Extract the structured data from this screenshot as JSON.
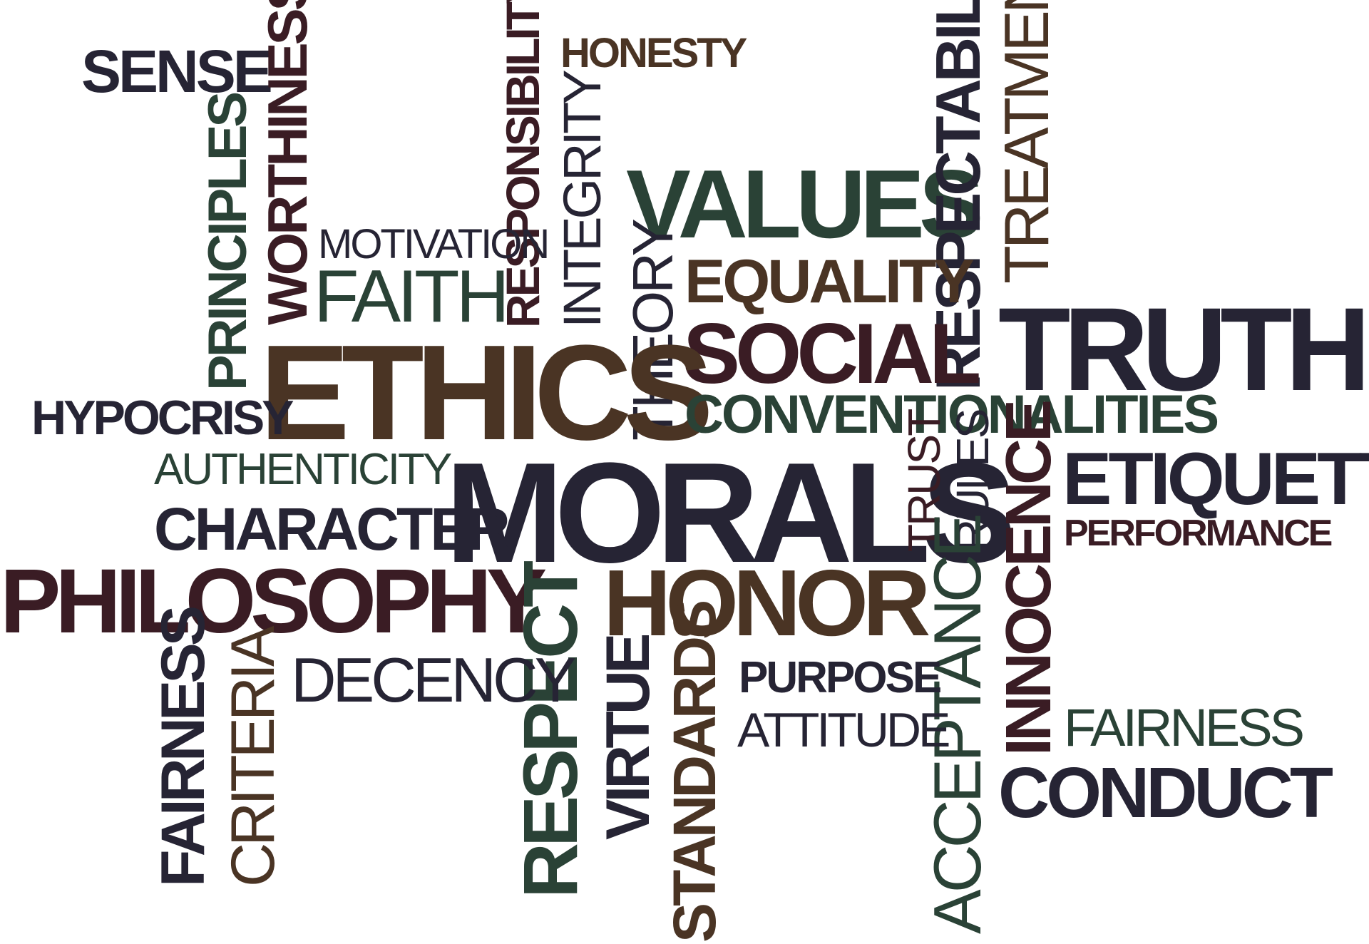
{
  "colors": {
    "navy": "#262434",
    "brown": "#4a3424",
    "green": "#2a4236",
    "maroon": "#3a1c24",
    "background": "#ffffff"
  },
  "words": [
    {
      "text": "SENSE",
      "color": "navy",
      "weight": "bold",
      "orientation": "horizontal"
    },
    {
      "text": "HONESTY",
      "color": "brown",
      "weight": "bold",
      "orientation": "horizontal"
    },
    {
      "text": "WORTHINESS",
      "color": "maroon",
      "weight": "bold",
      "orientation": "vertical"
    },
    {
      "text": "PRINCIPLES",
      "color": "green",
      "weight": "bold",
      "orientation": "vertical"
    },
    {
      "text": "RESPONSIBILITY",
      "color": "maroon",
      "weight": "bold",
      "orientation": "vertical"
    },
    {
      "text": "INTEGRITY",
      "color": "navy",
      "weight": "regular",
      "orientation": "vertical"
    },
    {
      "text": "VALUES",
      "color": "green",
      "weight": "bold",
      "orientation": "horizontal"
    },
    {
      "text": "RESPECTABILITY",
      "color": "navy",
      "weight": "bold",
      "orientation": "vertical"
    },
    {
      "text": "TREATMENT",
      "color": "brown",
      "weight": "regular",
      "orientation": "vertical"
    },
    {
      "text": "MOTIVATION",
      "color": "navy",
      "weight": "regular",
      "orientation": "horizontal"
    },
    {
      "text": "FAITH",
      "color": "green",
      "weight": "regular",
      "orientation": "horizontal"
    },
    {
      "text": "EQUALITY",
      "color": "brown",
      "weight": "bold",
      "orientation": "horizontal"
    },
    {
      "text": "THEORY",
      "color": "navy",
      "weight": "regular",
      "orientation": "vertical"
    },
    {
      "text": "SOCIAL",
      "color": "maroon",
      "weight": "bold",
      "orientation": "horizontal"
    },
    {
      "text": "TRUTH",
      "color": "navy",
      "weight": "bold",
      "orientation": "horizontal"
    },
    {
      "text": "ETHICS",
      "color": "brown",
      "weight": "bold",
      "orientation": "horizontal"
    },
    {
      "text": "HYPOCRISY",
      "color": "navy",
      "weight": "bold",
      "orientation": "horizontal"
    },
    {
      "text": "CONVENTIONALITIES",
      "color": "green",
      "weight": "bold",
      "orientation": "horizontal"
    },
    {
      "text": "AUTHENTICITY",
      "color": "green",
      "weight": "regular",
      "orientation": "horizontal"
    },
    {
      "text": "MORALS",
      "color": "navy",
      "weight": "bold",
      "orientation": "horizontal"
    },
    {
      "text": "TRUST",
      "color": "maroon",
      "weight": "regular",
      "orientation": "vertical"
    },
    {
      "text": "RULES",
      "color": "navy",
      "weight": "regular",
      "orientation": "vertical"
    },
    {
      "text": "INNOCENCE",
      "color": "maroon",
      "weight": "bold",
      "orientation": "vertical"
    },
    {
      "text": "ETIQUETTE",
      "color": "navy",
      "weight": "bold",
      "orientation": "horizontal"
    },
    {
      "text": "PERFORMANCE",
      "color": "maroon",
      "weight": "bold",
      "orientation": "horizontal"
    },
    {
      "text": "CHARACTER",
      "color": "navy",
      "weight": "bold",
      "orientation": "horizontal"
    },
    {
      "text": "PHILOSOPHY",
      "color": "maroon",
      "weight": "bold",
      "orientation": "horizontal"
    },
    {
      "text": "RESPECT",
      "color": "green",
      "weight": "bold",
      "orientation": "vertical"
    },
    {
      "text": "HONOR",
      "color": "brown",
      "weight": "bold",
      "orientation": "horizontal"
    },
    {
      "text": "ACCEPTANCE",
      "color": "green",
      "weight": "regular",
      "orientation": "vertical"
    },
    {
      "text": "FAIRNESS",
      "color": "navy",
      "weight": "bold",
      "orientation": "vertical"
    },
    {
      "text": "CRITERIA",
      "color": "brown",
      "weight": "regular",
      "orientation": "vertical"
    },
    {
      "text": "DECENCY",
      "color": "navy",
      "weight": "regular",
      "orientation": "horizontal"
    },
    {
      "text": "VIRTUE",
      "color": "navy",
      "weight": "bold",
      "orientation": "vertical"
    },
    {
      "text": "STANDARDS",
      "color": "brown",
      "weight": "bold",
      "orientation": "vertical"
    },
    {
      "text": "PURPOSE",
      "color": "navy",
      "weight": "bold",
      "orientation": "horizontal"
    },
    {
      "text": "ATTITUDE",
      "color": "navy",
      "weight": "regular",
      "orientation": "horizontal"
    },
    {
      "text": "FAIRNESS",
      "color": "green",
      "weight": "regular",
      "orientation": "horizontal"
    },
    {
      "text": "CONDUCT",
      "color": "navy",
      "weight": "bold",
      "orientation": "horizontal"
    }
  ]
}
